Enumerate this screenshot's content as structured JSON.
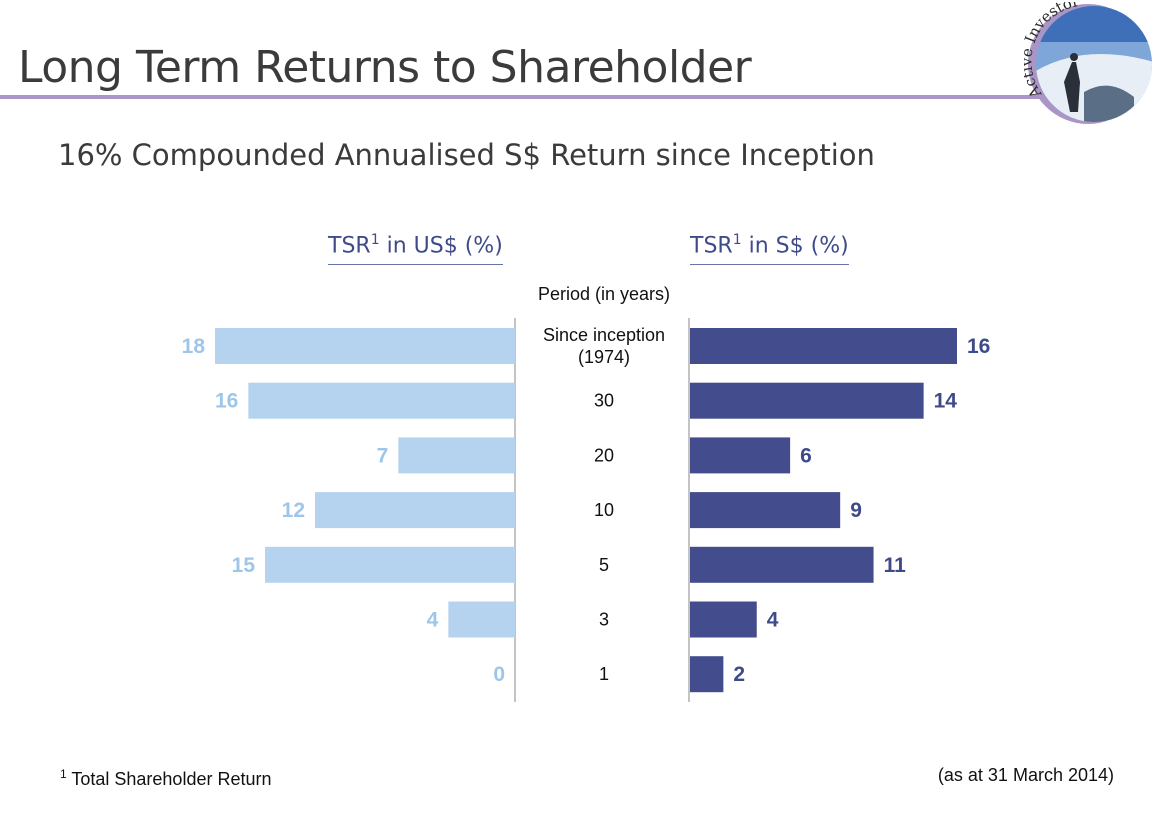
{
  "slide": {
    "title": "Long Term Returns to Shareholder",
    "subtitle": "16% Compounded Annualised S$ Return since Inception",
    "logo_text": "Active Investor",
    "panel_left_title": "TSR",
    "panel_left_title_sup": "1",
    "panel_left_title_suffix": " in US$ (%)",
    "panel_right_title": "TSR",
    "panel_right_title_sup": "1",
    "panel_right_title_suffix": " in S$ (%)",
    "period_header": "Period (in years)",
    "footnote_marker": "1",
    "footnote_text": " Total Shareholder Return",
    "as_of": "(as at 31 March 2014)"
  },
  "chart_data": {
    "type": "bar",
    "orientation": "horizontal-butterfly",
    "categories": [
      [
        "Since inception",
        "(1974)"
      ],
      [
        "30"
      ],
      [
        "20"
      ],
      [
        "10"
      ],
      [
        "5"
      ],
      [
        "3"
      ],
      [
        "1"
      ]
    ],
    "series": [
      {
        "name": "TSR¹ in US$ (%)",
        "values": [
          18,
          16,
          7,
          12,
          15,
          4,
          0
        ],
        "color": "#b5d3ef",
        "label_color": "#9ec6e8"
      },
      {
        "name": "TSR¹ in S$ (%)",
        "values": [
          16,
          14,
          6,
          9,
          11,
          4,
          2
        ],
        "color": "#434d8d",
        "label_color": "#3f4a8a"
      }
    ],
    "xlim": [
      0,
      18
    ]
  }
}
